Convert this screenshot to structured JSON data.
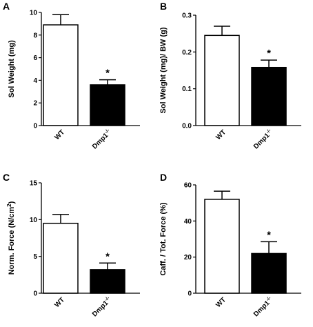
{
  "chart_data": [
    {
      "panel": "A",
      "type": "bar",
      "ylabel": "Sol Weight (mg)",
      "ylim": [
        0,
        10
      ],
      "yticks": [
        "0",
        "2",
        "4",
        "6",
        "8",
        "10"
      ],
      "categories": [
        "WT",
        "Dmp1"
      ],
      "category_superscripts": [
        "",
        "-/-"
      ],
      "values": [
        8.9,
        3.6
      ],
      "errors": [
        0.9,
        0.45
      ],
      "fills": [
        "#ffffff",
        "#000000"
      ],
      "annotations": [
        "",
        "*"
      ]
    },
    {
      "panel": "B",
      "type": "bar",
      "ylabel": "Sol Weight (mg)/ BW (g)",
      "ylim": [
        0,
        0.3
      ],
      "yticks": [
        "0.0",
        "0.1",
        "0.2",
        "0.3"
      ],
      "categories": [
        "WT",
        "Dmp1"
      ],
      "category_superscripts": [
        "",
        "-/-"
      ],
      "values": [
        0.245,
        0.158
      ],
      "errors": [
        0.025,
        0.02
      ],
      "fills": [
        "#ffffff",
        "#000000"
      ],
      "annotations": [
        "",
        "*"
      ]
    },
    {
      "panel": "C",
      "type": "bar",
      "ylabel": "Norm. Force (N/cm",
      "ylabel_superscript": "2",
      "ylabel_suffix": ")",
      "ylim": [
        0,
        15
      ],
      "yticks": [
        "0",
        "5",
        "10",
        "15"
      ],
      "categories": [
        "WT",
        "Dmp1"
      ],
      "category_superscripts": [
        "",
        "-/-"
      ],
      "values": [
        9.5,
        3.2
      ],
      "errors": [
        1.2,
        0.9
      ],
      "fills": [
        "#ffffff",
        "#000000"
      ],
      "annotations": [
        "",
        "*"
      ]
    },
    {
      "panel": "D",
      "type": "bar",
      "ylabel": "Caff. / Tot. Force (%)",
      "ylim": [
        0,
        60
      ],
      "yticks": [
        "0",
        "20",
        "40",
        "60"
      ],
      "categories": [
        "WT",
        "Dmp1"
      ],
      "category_superscripts": [
        "",
        "-/-"
      ],
      "values": [
        52,
        22
      ],
      "errors": [
        4.5,
        6.5
      ],
      "fills": [
        "#ffffff",
        "#000000"
      ],
      "annotations": [
        "",
        "*"
      ]
    }
  ]
}
